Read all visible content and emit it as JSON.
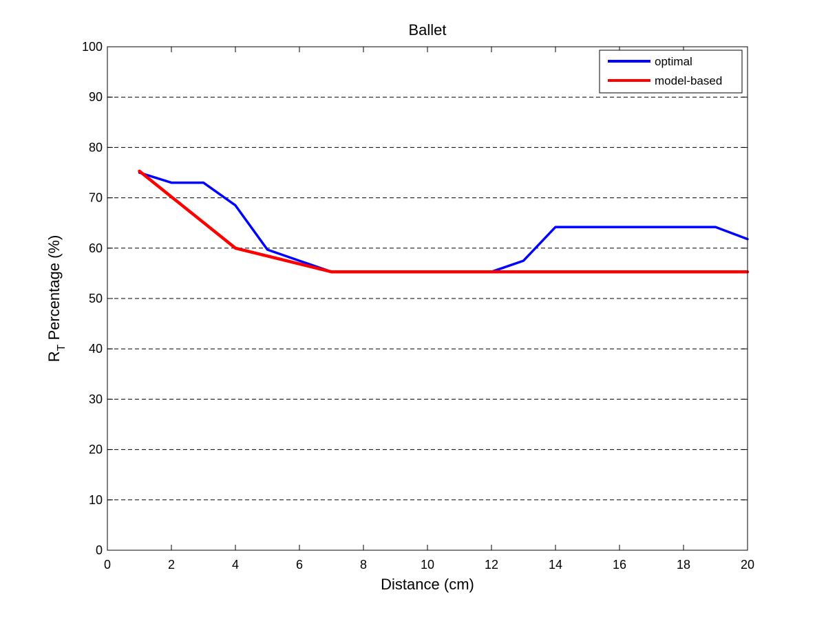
{
  "chart_data": {
    "type": "line",
    "title": "Ballet",
    "xlabel": "Distance (cm)",
    "ylabel_main": "R",
    "ylabel_sub": "T",
    "ylabel_rest": " Percentage (%)",
    "xlim": [
      0,
      20
    ],
    "ylim": [
      0,
      100
    ],
    "xticks": [
      0,
      2,
      4,
      6,
      8,
      10,
      12,
      14,
      16,
      18,
      20
    ],
    "yticks": [
      0,
      10,
      20,
      30,
      40,
      50,
      60,
      70,
      80,
      90,
      100
    ],
    "grid": "horizontal-dashed",
    "legend_position": "top-right",
    "series": [
      {
        "name": "optimal",
        "color": "#0000ff",
        "x": [
          1,
          2,
          3,
          4,
          5,
          6,
          7,
          8,
          9,
          10,
          11,
          12,
          13,
          14,
          15,
          16,
          17,
          18,
          19,
          20
        ],
        "y": [
          75,
          73,
          73,
          68.5,
          59.7,
          57.5,
          55.3,
          55.3,
          55.3,
          55.3,
          55.3,
          55.3,
          57.5,
          64.2,
          64.2,
          64.2,
          64.2,
          64.2,
          64.2,
          61.8
        ]
      },
      {
        "name": "model-based",
        "color": "#ff0000",
        "x": [
          1,
          4,
          7,
          20
        ],
        "y": [
          75.3,
          60,
          55.3,
          55.3
        ]
      }
    ]
  }
}
